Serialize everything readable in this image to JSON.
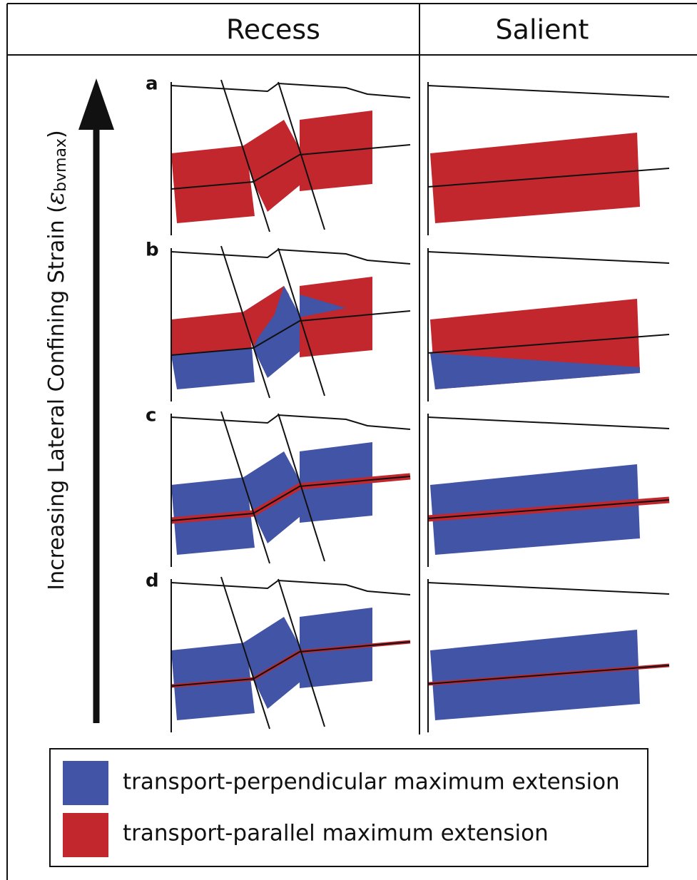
{
  "header": {
    "columns": [
      "Recess",
      "Salient"
    ]
  },
  "axis_label": {
    "prefix": "Increasing  Lateral Confining Strain (",
    "symbol": "ε",
    "subscript": "bvmax",
    "suffix": ")"
  },
  "panels": [
    {
      "label": "a"
    },
    {
      "label": "b"
    },
    {
      "label": "c"
    },
    {
      "label": "d"
    }
  ],
  "legend": {
    "items": [
      {
        "label": "transport-perpendicular maximum extension"
      },
      {
        "label": "transport-parallel maximum extension"
      }
    ]
  }
}
